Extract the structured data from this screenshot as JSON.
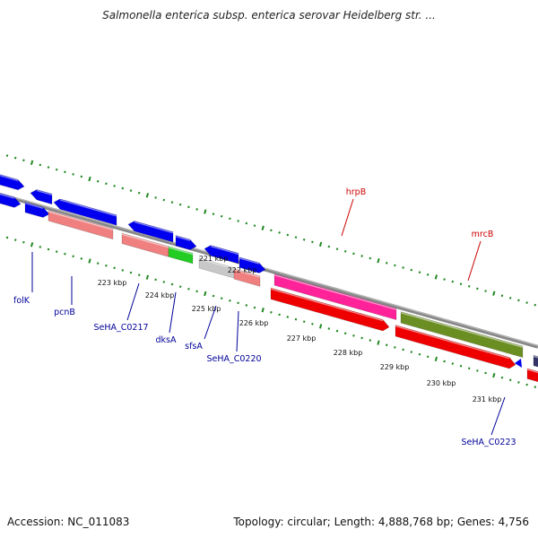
{
  "title": "Salmonella enterica subsp. enterica serovar Heidelberg str. ...",
  "footer": {
    "accession": "Accession: NC_011083",
    "summary": "Topology: circular; Length: 4,888,768 bp; Genes: 4,756"
  },
  "colors": {
    "cds": "#0000ee",
    "pseudo": "#f08080",
    "rna": "#22cc22",
    "other": "#c8c8c8",
    "hrpB": "#ff2299",
    "red": "#ee0000",
    "olive": "#6b8e23",
    "backbone": "#888888",
    "dots": "#228822",
    "label_red": "#cc0000",
    "label_blue": "#000099"
  },
  "kbp_labels": [
    "221 kbp",
    "222 kbp",
    "223 kbp",
    "224 kbp",
    "225 kbp",
    "226 kbp",
    "227 kbp",
    "228 kbp",
    "229 kbp",
    "230 kbp",
    "231 kbp"
  ],
  "gene_labels": [
    "folK",
    "pcnB",
    "SeHA_C0217",
    "dksA",
    "sfsA",
    "SeHA_C0220",
    "hrpB",
    "mrcB",
    "SeHA_C0223"
  ]
}
